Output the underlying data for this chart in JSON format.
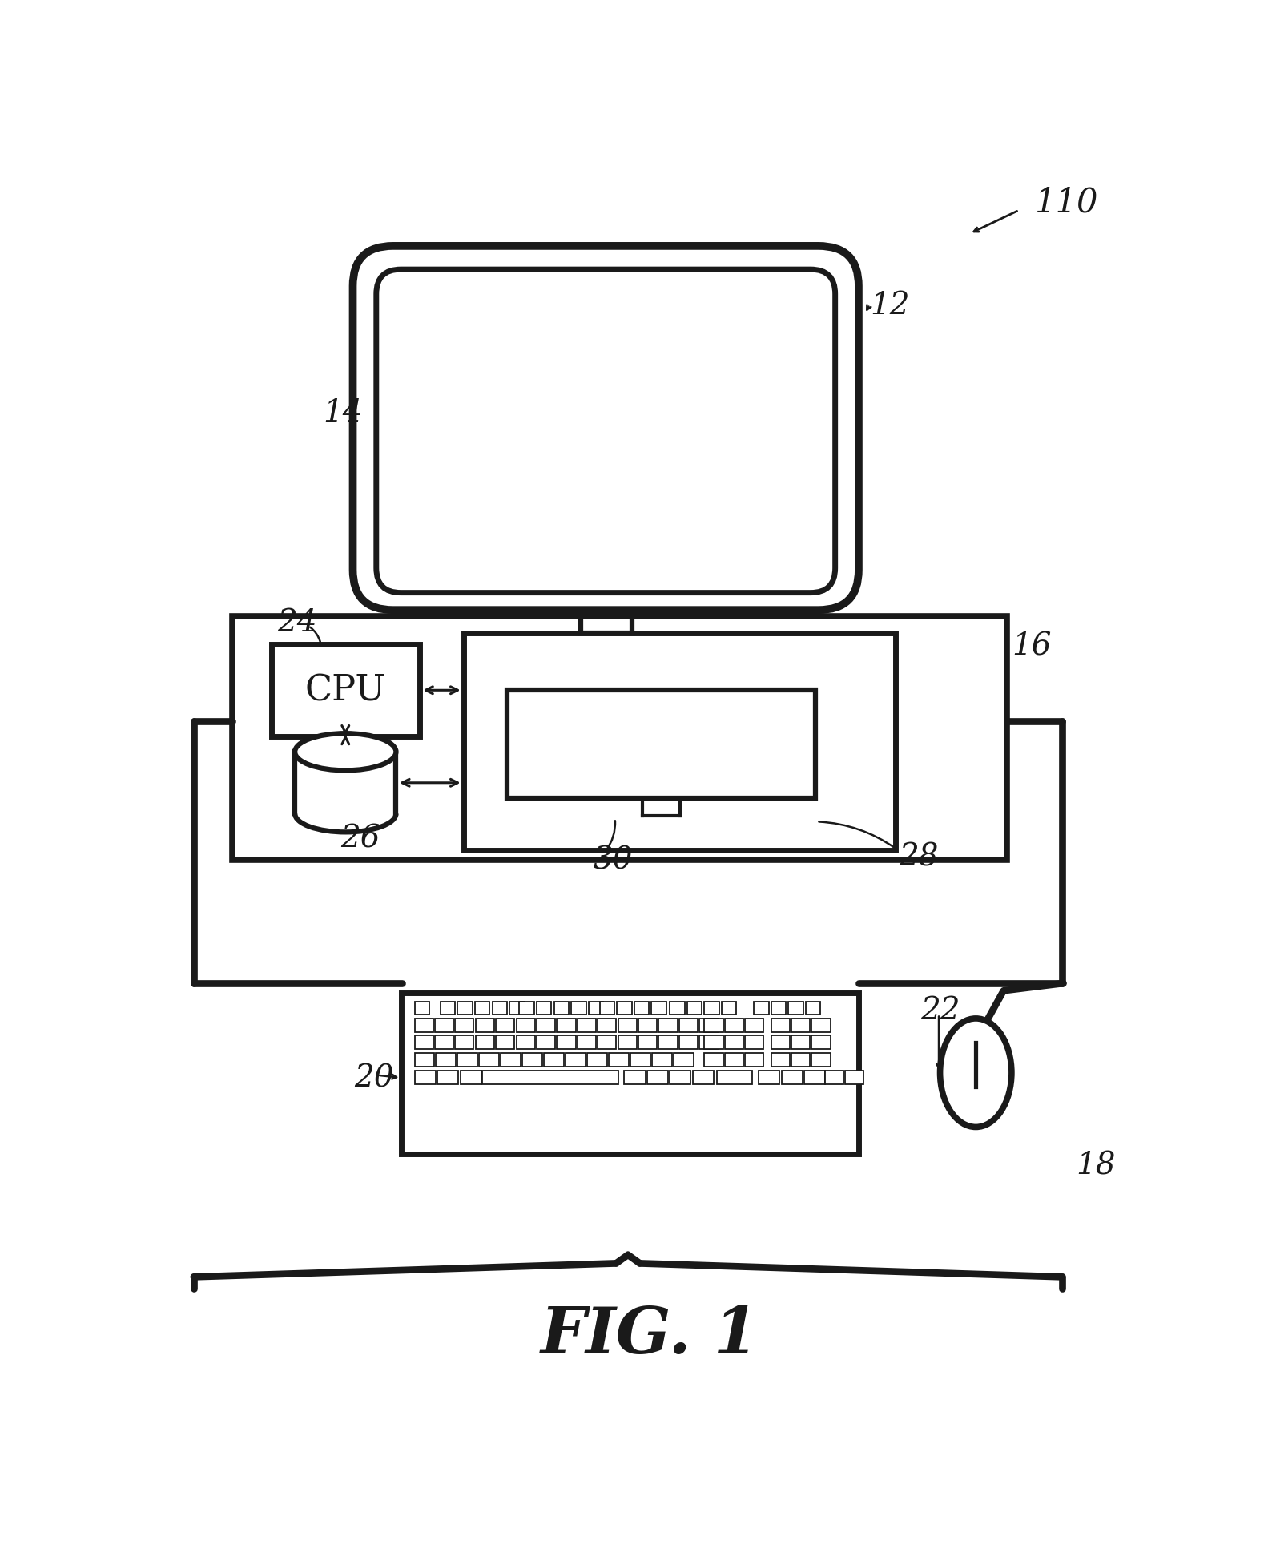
{
  "bg_color": "#ffffff",
  "line_color": "#1a1a1a",
  "lw": 2.5,
  "fig_label": "FIG. 1",
  "label_110": "110",
  "label_12": "12",
  "label_14": "14",
  "label_16": "16",
  "label_24": "24",
  "label_26": "26",
  "label_28": "28",
  "label_30": "30",
  "label_20": "20",
  "label_22": "22",
  "label_18": "18",
  "cpu_label": "CPU"
}
